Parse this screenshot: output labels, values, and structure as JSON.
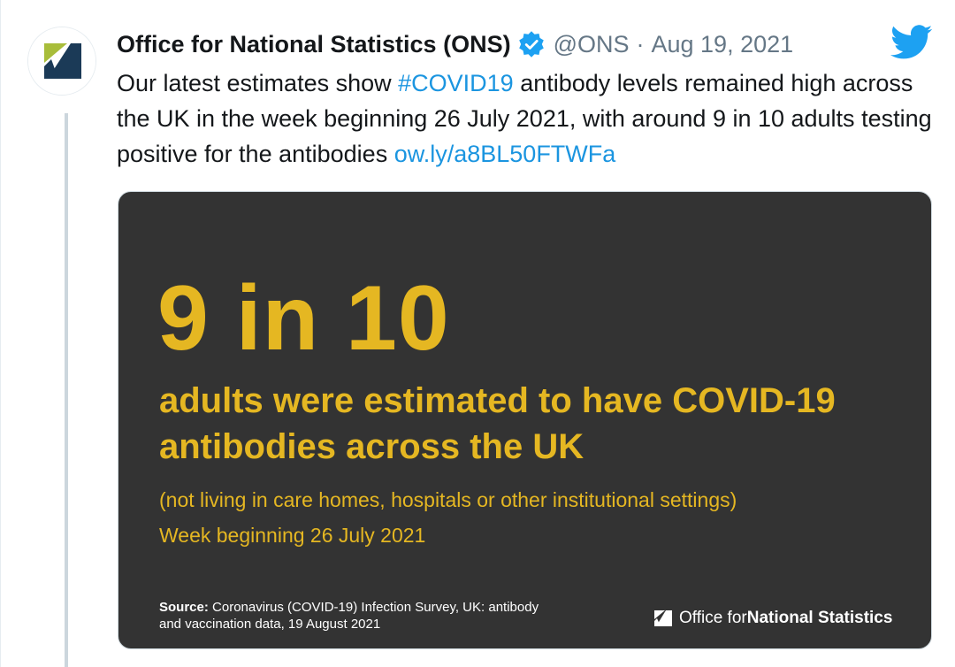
{
  "tweet": {
    "author": {
      "display_name": "Office for National Statistics (ONS)",
      "handle": "@ONS",
      "separator": "·",
      "date": "Aug 19, 2021",
      "verified": true,
      "avatar_icon": "ons-logo-icon"
    },
    "text": {
      "part1": "Our latest estimates show ",
      "hashtag": "#COVID19",
      "part2": " antibody levels remained high across the UK in the week beginning 26 July 2021, with around 9 in 10 adults testing positive for the antibodies ",
      "link": "ow.ly/a8BL50FTWFa"
    },
    "media": {
      "big_stat": "9 in 10",
      "headline": "adults were estimated to have COVID-19 antibodies across the UK",
      "subnote": "(not living in care homes, hospitals or other institutional settings)",
      "week": "Week beginning 26 July 2021",
      "source_label": "Source:",
      "source_text": " Coronavirus (COVID-19) Infection Survey, UK: antibody and vaccination data, 19 August 2021",
      "logo_text_regular": "Office for ",
      "logo_text_bold": "National Statistics"
    }
  },
  "colors": {
    "text_primary": "#14171a",
    "text_secondary": "#657786",
    "link": "#1b95e0",
    "card_bg": "#333333",
    "accent_yellow": "#e5b722",
    "twitter_blue": "#1da1f2",
    "ons_navy": "#1b3a57",
    "ons_green": "#a8bd3a"
  }
}
